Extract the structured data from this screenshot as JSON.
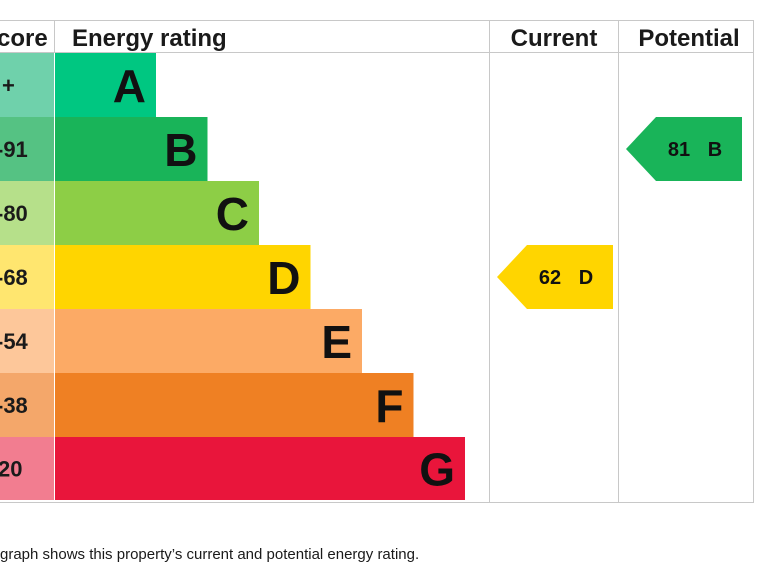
{
  "chart_data": {
    "type": "bar",
    "headers": {
      "score": "core",
      "rating": "Energy rating",
      "current": "Current",
      "potential": "Potential"
    },
    "bands": [
      {
        "letter": "A",
        "score_label": "+",
        "color": "#00c781"
      },
      {
        "letter": "B",
        "score_label": "-91",
        "color": "#19b459"
      },
      {
        "letter": "C",
        "score_label": "-80",
        "color": "#8dce46"
      },
      {
        "letter": "D",
        "score_label": "-68",
        "color": "#ffd500"
      },
      {
        "letter": "E",
        "score_label": "-54",
        "color": "#fcaa65"
      },
      {
        "letter": "F",
        "score_label": "-38",
        "color": "#ef8023"
      },
      {
        "letter": "G",
        "score_label": "20",
        "color": "#e9153b"
      }
    ],
    "score_column_colors": [
      "#6fd1ab",
      "#55c283",
      "#b6e08a",
      "#ffe66f",
      "#fdc79a",
      "#f4a76a",
      "#f27d90"
    ],
    "current": {
      "value": "62",
      "letter": "D",
      "band_index": 3,
      "color": "#ffd500"
    },
    "potential": {
      "value": "81",
      "letter": "B",
      "band_index": 1,
      "color": "#19b459"
    }
  },
  "caption": "graph shows this property’s current and potential energy rating."
}
